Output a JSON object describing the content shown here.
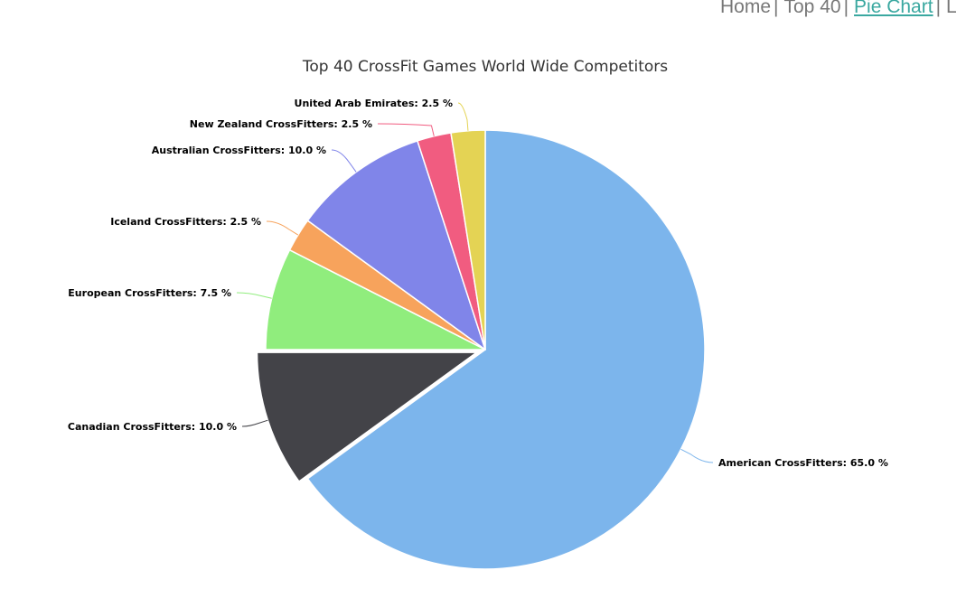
{
  "nav": {
    "items": [
      {
        "label": "Home",
        "active": false
      },
      {
        "label": "Top 40",
        "active": false
      },
      {
        "label": "Pie Chart",
        "active": true
      },
      {
        "label": "L",
        "active": false
      }
    ],
    "separator": "|"
  },
  "chart_data": {
    "type": "pie",
    "title": "Top 40 CrossFit Games World Wide Competitors",
    "slices": [
      {
        "label": "American CrossFitters",
        "value": 65.0,
        "color": "#7cb5ec",
        "sliced": false
      },
      {
        "label": "Canadian CrossFitters",
        "value": 10.0,
        "color": "#434348",
        "sliced": true
      },
      {
        "label": "European CrossFitters",
        "value": 7.5,
        "color": "#90ed7d",
        "sliced": false
      },
      {
        "label": "Iceland CrossFitters",
        "value": 2.5,
        "color": "#f7a35c",
        "sliced": false
      },
      {
        "label": "Australian CrossFitters",
        "value": 10.0,
        "color": "#8085e9",
        "sliced": false
      },
      {
        "label": "New Zealand CrossFitters",
        "value": 2.5,
        "color": "#f15c80",
        "sliced": false
      },
      {
        "label": "United Arab Emirates",
        "value": 2.5,
        "color": "#e4d354",
        "sliced": false
      }
    ],
    "value_suffix": " %"
  }
}
